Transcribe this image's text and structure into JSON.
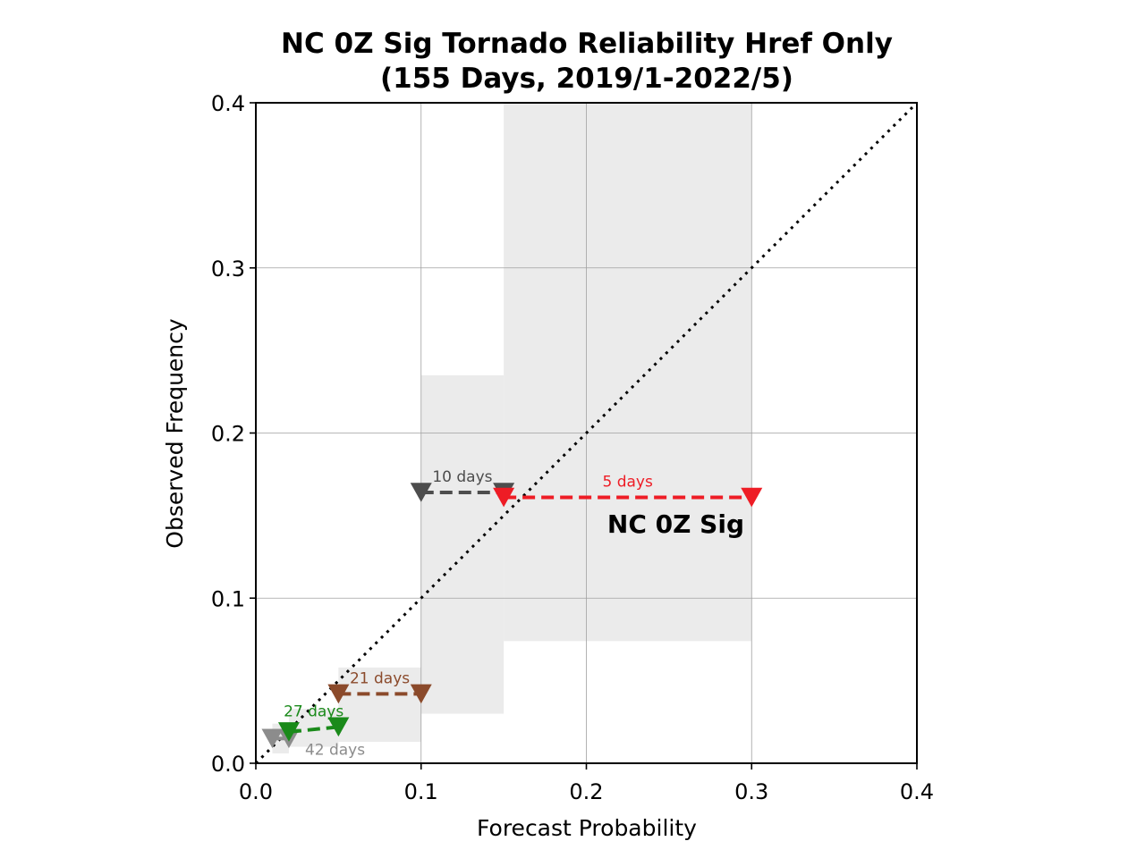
{
  "chart_data": {
    "type": "scatter",
    "title": "NC 0Z Sig Tornado Reliability Href Only",
    "subtitle": "(155 Days, 2019/1-2022/5)",
    "xlabel": "Forecast Probability",
    "ylabel": "Observed Frequency",
    "xlim": [
      0,
      0.4
    ],
    "ylim": [
      0,
      0.4
    ],
    "xticks": [
      "0.0",
      "0.1",
      "0.2",
      "0.3",
      "0.4"
    ],
    "yticks": [
      "0.0",
      "0.1",
      "0.2",
      "0.3",
      "0.4"
    ],
    "grid": true,
    "perfect_reliability_line": true,
    "confidence_bins": [
      {
        "x0": 0.01,
        "x1": 0.02,
        "y0": 0.006,
        "y1": 0.024
      },
      {
        "x0": 0.02,
        "x1": 0.05,
        "y0": 0.01,
        "y1": 0.033
      },
      {
        "x0": 0.05,
        "x1": 0.1,
        "y0": 0.013,
        "y1": 0.058
      },
      {
        "x0": 0.1,
        "x1": 0.15,
        "y0": 0.03,
        "y1": 0.235
      },
      {
        "x0": 0.15,
        "x1": 0.3,
        "y0": 0.074,
        "y1": 0.4
      }
    ],
    "series": [
      {
        "color": "#8c8c8c",
        "x": [
          0.01,
          0.02
        ],
        "y": [
          0.015,
          0.015
        ],
        "label": "42 days"
      },
      {
        "color": "#1a8a1a",
        "x": [
          0.02,
          0.05
        ],
        "y": [
          0.019,
          0.022
        ],
        "label": "27 days"
      },
      {
        "color": "#8b4a2b",
        "x": [
          0.05,
          0.1
        ],
        "y": [
          0.042,
          0.042
        ],
        "label": "21 days"
      },
      {
        "color": "#4d4d4d",
        "x": [
          0.1,
          0.15
        ],
        "y": [
          0.164,
          0.164
        ],
        "label": "10 days"
      },
      {
        "color": "#ee1c25",
        "x": [
          0.15,
          0.3
        ],
        "y": [
          0.161,
          0.161
        ],
        "label": "5 days"
      }
    ],
    "annotation": "NC 0Z Sig"
  },
  "colors": {
    "bin_fill": "#ebebeb",
    "grid": "#a0a0a0"
  }
}
